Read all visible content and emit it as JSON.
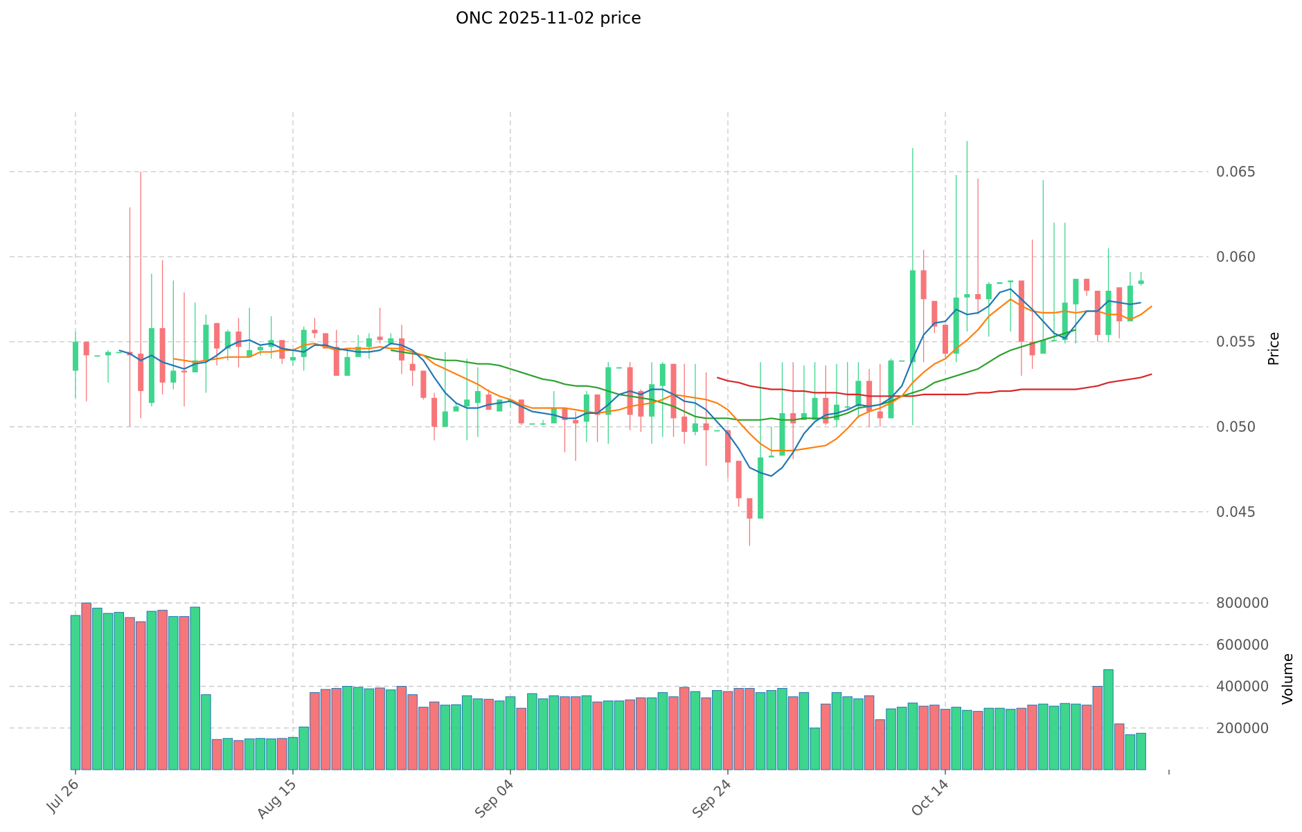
{
  "chart_data": {
    "type": "candlestick",
    "title": "ONC  2025-11-02  price",
    "ylabel_price": "Price",
    "ylabel_volume": "Volume",
    "price_ylim": [
      0.0405,
      0.0685
    ],
    "price_ticks": [
      0.045,
      0.05,
      0.055,
      0.06,
      0.065
    ],
    "price_tick_labels": [
      "0.045",
      "0.050",
      "0.055",
      "0.060",
      "0.065"
    ],
    "volume_ylim": [
      0,
      870000
    ],
    "volume_ticks": [
      200000,
      400000,
      600000,
      800000
    ],
    "volume_tick_labels": [
      "200000",
      "400000",
      "600000",
      "800000"
    ],
    "x_ticks": [
      0,
      20,
      40,
      60,
      80
    ],
    "x_tick_labels": [
      "Jul 26",
      "Aug 15",
      "Sep 04",
      "Sep 24",
      "Oct 14"
    ],
    "up_color": "#3dd68c",
    "down_color": "#f7767a",
    "ma_colors": {
      "ma5": "#1f77b4",
      "ma10": "#ff7f0e",
      "ma20": "#2ca02c",
      "ma60": "#d62728"
    },
    "ohlc": [
      [
        0.0533,
        0.0556,
        0.0517,
        0.055
      ],
      [
        0.055,
        0.055,
        0.0515,
        0.0542
      ],
      [
        0.0542,
        0.0542,
        0.0542,
        0.0542
      ],
      [
        0.0542,
        0.0545,
        0.0526,
        0.0544
      ],
      [
        0.0544,
        0.0544,
        0.0544,
        0.0544
      ],
      [
        0.0544,
        0.0629,
        0.05,
        0.0542
      ],
      [
        0.0543,
        0.065,
        0.0505,
        0.0521
      ],
      [
        0.0514,
        0.059,
        0.0512,
        0.0558
      ],
      [
        0.0558,
        0.0598,
        0.0519,
        0.0526
      ],
      [
        0.0526,
        0.0586,
        0.0522,
        0.0533
      ],
      [
        0.0533,
        0.0579,
        0.0512,
        0.0532
      ],
      [
        0.0532,
        0.0573,
        0.0532,
        0.0539
      ],
      [
        0.0539,
        0.0566,
        0.052,
        0.056
      ],
      [
        0.0561,
        0.0561,
        0.0536,
        0.0546
      ],
      [
        0.0546,
        0.0557,
        0.0539,
        0.0556
      ],
      [
        0.0556,
        0.0564,
        0.0535,
        0.0547
      ],
      [
        0.0541,
        0.057,
        0.0541,
        0.0545
      ],
      [
        0.0545,
        0.0548,
        0.0542,
        0.0547
      ],
      [
        0.0547,
        0.0565,
        0.054,
        0.0551
      ],
      [
        0.0551,
        0.0551,
        0.0537,
        0.054
      ],
      [
        0.0539,
        0.0545,
        0.0536,
        0.0541
      ],
      [
        0.0541,
        0.0559,
        0.0533,
        0.0557
      ],
      [
        0.0557,
        0.0564,
        0.0552,
        0.0555
      ],
      [
        0.0555,
        0.0555,
        0.0548,
        0.0546
      ],
      [
        0.0547,
        0.0557,
        0.053,
        0.053
      ],
      [
        0.053,
        0.0545,
        0.053,
        0.0541
      ],
      [
        0.0541,
        0.0554,
        0.0541,
        0.0547
      ],
      [
        0.0547,
        0.0555,
        0.054,
        0.0552
      ],
      [
        0.0553,
        0.057,
        0.0549,
        0.0551
      ],
      [
        0.0549,
        0.0555,
        0.0548,
        0.0552
      ],
      [
        0.0552,
        0.056,
        0.0531,
        0.0539
      ],
      [
        0.0537,
        0.0545,
        0.0524,
        0.0533
      ],
      [
        0.0533,
        0.0533,
        0.0516,
        0.0517
      ],
      [
        0.0517,
        0.052,
        0.0492,
        0.05
      ],
      [
        0.05,
        0.0544,
        0.05,
        0.0509
      ],
      [
        0.0509,
        0.0514,
        0.0509,
        0.0512
      ],
      [
        0.0512,
        0.054,
        0.0492,
        0.0516
      ],
      [
        0.0514,
        0.0535,
        0.0494,
        0.0521
      ],
      [
        0.0519,
        0.0522,
        0.051,
        0.051
      ],
      [
        0.0509,
        0.0515,
        0.0509,
        0.0516
      ],
      [
        0.0516,
        0.0516,
        0.0511,
        0.0516
      ],
      [
        0.0516,
        0.0516,
        0.0501,
        0.0502
      ],
      [
        0.0502,
        0.0502,
        0.0502,
        0.0502
      ],
      [
        0.0502,
        0.0504,
        0.0501,
        0.0502
      ],
      [
        0.0502,
        0.0521,
        0.0502,
        0.0511
      ],
      [
        0.0511,
        0.0511,
        0.0485,
        0.0504
      ],
      [
        0.0504,
        0.0509,
        0.048,
        0.0502
      ],
      [
        0.0503,
        0.0521,
        0.0491,
        0.0519
      ],
      [
        0.0519,
        0.0519,
        0.0491,
        0.0507
      ],
      [
        0.0507,
        0.0538,
        0.049,
        0.0535
      ],
      [
        0.0535,
        0.0535,
        0.0535,
        0.0535
      ],
      [
        0.0535,
        0.0538,
        0.0498,
        0.0507
      ],
      [
        0.0521,
        0.0522,
        0.0497,
        0.0506
      ],
      [
        0.0506,
        0.0538,
        0.049,
        0.0525
      ],
      [
        0.0524,
        0.0538,
        0.0494,
        0.0537
      ],
      [
        0.0537,
        0.0537,
        0.0494,
        0.0505
      ],
      [
        0.0506,
        0.0537,
        0.049,
        0.0497
      ],
      [
        0.0497,
        0.0537,
        0.0495,
        0.0502
      ],
      [
        0.0502,
        0.0532,
        0.0477,
        0.0498
      ],
      [
        0.0498,
        0.0498,
        0.0498,
        0.0498
      ],
      [
        0.0498,
        0.0498,
        0.047,
        0.0479
      ],
      [
        0.048,
        0.048,
        0.0453,
        0.0458
      ],
      [
        0.0458,
        0.0458,
        0.043,
        0.0446
      ],
      [
        0.0446,
        0.0538,
        0.0446,
        0.0482
      ],
      [
        0.0482,
        0.05,
        0.0482,
        0.0483
      ],
      [
        0.0483,
        0.0538,
        0.0483,
        0.0508
      ],
      [
        0.0508,
        0.0538,
        0.0481,
        0.0502
      ],
      [
        0.0504,
        0.0536,
        0.0504,
        0.0508
      ],
      [
        0.0504,
        0.0538,
        0.0504,
        0.0517
      ],
      [
        0.0517,
        0.0536,
        0.0501,
        0.0502
      ],
      [
        0.0504,
        0.0537,
        0.05,
        0.0513
      ],
      [
        0.0512,
        0.0538,
        0.051,
        0.0512
      ],
      [
        0.0512,
        0.0538,
        0.0505,
        0.0527
      ],
      [
        0.0527,
        0.0534,
        0.05,
        0.0509
      ],
      [
        0.0509,
        0.0537,
        0.05,
        0.0505
      ],
      [
        0.0505,
        0.054,
        0.0505,
        0.0539
      ],
      [
        0.0539,
        0.0539,
        0.0539,
        0.0539
      ],
      [
        0.0538,
        0.0664,
        0.0501,
        0.0592
      ],
      [
        0.0592,
        0.0604,
        0.0538,
        0.0575
      ],
      [
        0.0574,
        0.0574,
        0.0555,
        0.0559
      ],
      [
        0.056,
        0.056,
        0.0541,
        0.0543
      ],
      [
        0.0543,
        0.0648,
        0.0538,
        0.0576
      ],
      [
        0.0576,
        0.0668,
        0.0556,
        0.0578
      ],
      [
        0.0578,
        0.0646,
        0.0566,
        0.0575
      ],
      [
        0.0575,
        0.0585,
        0.0553,
        0.0584
      ],
      [
        0.0584,
        0.0585,
        0.0584,
        0.0585
      ],
      [
        0.0585,
        0.0586,
        0.0556,
        0.0586
      ],
      [
        0.0586,
        0.0586,
        0.053,
        0.055
      ],
      [
        0.055,
        0.061,
        0.0534,
        0.0542
      ],
      [
        0.0543,
        0.0645,
        0.0543,
        0.0551
      ],
      [
        0.0551,
        0.062,
        0.055,
        0.0551
      ],
      [
        0.0551,
        0.062,
        0.0549,
        0.0573
      ],
      [
        0.0572,
        0.0587,
        0.0549,
        0.0587
      ],
      [
        0.0587,
        0.0587,
        0.0577,
        0.058
      ],
      [
        0.058,
        0.058,
        0.055,
        0.0554
      ],
      [
        0.0554,
        0.0605,
        0.055,
        0.058
      ],
      [
        0.0582,
        0.0582,
        0.0552,
        0.0562
      ],
      [
        0.0562,
        0.0591,
        0.0562,
        0.0583
      ],
      [
        0.0584,
        0.0591,
        0.0583,
        0.0586
      ]
    ],
    "volume": [
      740000,
      800000,
      775000,
      750000,
      755000,
      730000,
      710000,
      760000,
      765000,
      735000,
      735000,
      780000,
      360000,
      145000,
      150000,
      140000,
      148000,
      150000,
      148000,
      150000,
      155000,
      205000,
      370000,
      385000,
      390000,
      400000,
      395000,
      388000,
      392000,
      383000,
      400000,
      360000,
      300000,
      325000,
      310000,
      312000,
      355000,
      340000,
      338000,
      330000,
      350000,
      295000,
      365000,
      340000,
      355000,
      350000,
      350000,
      355000,
      325000,
      330000,
      330000,
      335000,
      345000,
      345000,
      370000,
      350000,
      395000,
      375000,
      345000,
      380000,
      375000,
      390000,
      390000,
      370000,
      380000,
      390000,
      350000,
      370000,
      200000,
      315000,
      370000,
      350000,
      340000,
      355000,
      240000,
      292000,
      300000,
      320000,
      305000,
      310000,
      290000,
      300000,
      285000,
      280000,
      295000,
      295000,
      290000,
      295000,
      310000,
      315000,
      305000,
      318000,
      315000,
      310000,
      400000,
      480000,
      220000,
      168000,
      175000
    ],
    "ma5": [
      null,
      null,
      null,
      null,
      0.0545,
      0.0543,
      0.0539,
      0.0542,
      0.0538,
      0.0536,
      0.0534,
      0.0537,
      0.0538,
      0.0542,
      0.0547,
      0.055,
      0.0551,
      0.0548,
      0.0549,
      0.0546,
      0.0545,
      0.0544,
      0.0548,
      0.0548,
      0.0546,
      0.0545,
      0.0544,
      0.0544,
      0.0545,
      0.0549,
      0.0548,
      0.0545,
      0.0539,
      0.0529,
      0.052,
      0.0514,
      0.0511,
      0.0511,
      0.0513,
      0.0514,
      0.0515,
      0.0512,
      0.0509,
      0.0508,
      0.0507,
      0.0505,
      0.0505,
      0.0508,
      0.0508,
      0.0513,
      0.0519,
      0.0521,
      0.0519,
      0.0522,
      0.0522,
      0.0519,
      0.0515,
      0.0514,
      0.051,
      0.0503,
      0.0496,
      0.0487,
      0.0476,
      0.0473,
      0.0471,
      0.0476,
      0.0485,
      0.0496,
      0.0503,
      0.0507,
      0.0508,
      0.051,
      0.0513,
      0.0512,
      0.0513,
      0.0517,
      0.0524,
      0.054,
      0.0554,
      0.0561,
      0.0562,
      0.0569,
      0.0566,
      0.0567,
      0.0571,
      0.0579,
      0.0581,
      0.0575,
      0.0569,
      0.0562,
      0.0555,
      0.0552,
      0.056,
      0.0568,
      0.0568,
      0.0574,
      0.0573,
      0.0572,
      0.0573
    ],
    "ma10": [
      null,
      null,
      null,
      null,
      null,
      null,
      null,
      null,
      null,
      0.054,
      0.0539,
      0.0538,
      0.0539,
      0.054,
      0.0541,
      0.0541,
      0.0541,
      0.0544,
      0.0544,
      0.0545,
      0.0545,
      0.0548,
      0.0549,
      0.0547,
      0.0545,
      0.0546,
      0.0546,
      0.0546,
      0.0547,
      0.0546,
      0.0546,
      0.0544,
      0.0542,
      0.0537,
      0.0534,
      0.0531,
      0.0528,
      0.0525,
      0.0521,
      0.0518,
      0.0516,
      0.0513,
      0.0511,
      0.0511,
      0.0511,
      0.0511,
      0.051,
      0.0509,
      0.0508,
      0.0509,
      0.051,
      0.0512,
      0.0513,
      0.0514,
      0.0516,
      0.0519,
      0.0518,
      0.0517,
      0.0516,
      0.0514,
      0.051,
      0.0503,
      0.0496,
      0.049,
      0.0486,
      0.0486,
      0.0486,
      0.0487,
      0.0488,
      0.0489,
      0.0493,
      0.0499,
      0.0506,
      0.0509,
      0.0511,
      0.0514,
      0.0518,
      0.0526,
      0.0532,
      0.0537,
      0.054,
      0.0546,
      0.0551,
      0.0557,
      0.0565,
      0.057,
      0.0575,
      0.0571,
      0.0568,
      0.0567,
      0.0567,
      0.0568,
      0.0567,
      0.0568,
      0.0568,
      0.0566,
      0.0566,
      0.0563,
      0.0566,
      0.0571
    ],
    "ma20": [
      null,
      null,
      null,
      null,
      null,
      null,
      null,
      null,
      null,
      null,
      null,
      null,
      null,
      null,
      null,
      null,
      null,
      null,
      null,
      null,
      null,
      null,
      null,
      null,
      null,
      null,
      null,
      null,
      null,
      0.0545,
      0.0544,
      0.0543,
      0.0542,
      0.054,
      0.0539,
      0.0539,
      0.0538,
      0.0537,
      0.0537,
      0.0536,
      0.0534,
      0.0532,
      0.053,
      0.0528,
      0.0527,
      0.0525,
      0.0524,
      0.0524,
      0.0523,
      0.0521,
      0.0519,
      0.0518,
      0.0517,
      0.0516,
      0.0514,
      0.0512,
      0.0509,
      0.0506,
      0.0505,
      0.0505,
      0.0505,
      0.0504,
      0.0504,
      0.0504,
      0.0505,
      0.0504,
      0.0504,
      0.0505,
      0.0505,
      0.0505,
      0.0506,
      0.0508,
      0.0511,
      0.0512,
      0.0513,
      0.0515,
      0.0518,
      0.052,
      0.0522,
      0.0526,
      0.0528,
      0.053,
      0.0532,
      0.0534,
      0.0538,
      0.0542,
      0.0545,
      0.0547,
      0.0549,
      0.0551,
      0.0553,
      0.0555,
      0.0557
    ],
    "ma60": [
      null,
      null,
      null,
      null,
      null,
      null,
      null,
      null,
      null,
      null,
      null,
      null,
      null,
      null,
      null,
      null,
      null,
      null,
      null,
      null,
      null,
      null,
      null,
      null,
      null,
      null,
      null,
      null,
      null,
      null,
      null,
      null,
      null,
      null,
      null,
      null,
      null,
      null,
      null,
      null,
      null,
      null,
      null,
      null,
      null,
      null,
      null,
      null,
      null,
      null,
      null,
      null,
      null,
      null,
      null,
      null,
      null,
      null,
      null,
      0.0529,
      0.0527,
      0.0526,
      0.0524,
      0.0523,
      0.0522,
      0.0522,
      0.0521,
      0.0521,
      0.052,
      0.052,
      0.052,
      0.0519,
      0.0519,
      0.0518,
      0.0518,
      0.0518,
      0.0518,
      0.0518,
      0.0519,
      0.0519,
      0.0519,
      0.0519,
      0.0519,
      0.052,
      0.052,
      0.0521,
      0.0521,
      0.0522,
      0.0522,
      0.0522,
      0.0522,
      0.0522,
      0.0522,
      0.0523,
      0.0524,
      0.0526,
      0.0527,
      0.0528,
      0.0529,
      0.0531
    ]
  }
}
